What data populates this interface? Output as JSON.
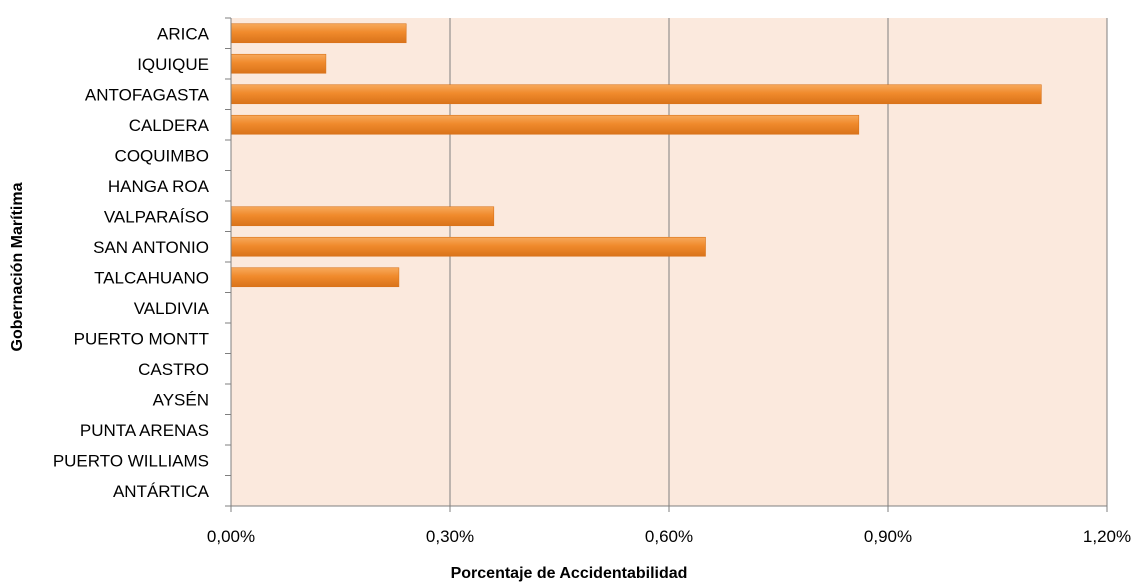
{
  "chart_data": {
    "type": "bar",
    "orientation": "horizontal",
    "title": "",
    "xlabel": "Porcentaje de Accidentabilidad",
    "ylabel": "Gobernación Marítima",
    "categories": [
      "ARICA",
      "IQUIQUE",
      "ANTOFAGASTA",
      "CALDERA",
      "COQUIMBO",
      "HANGA ROA",
      "VALPARAÍSO",
      "SAN ANTONIO",
      "TALCAHUANO",
      "VALDIVIA",
      "PUERTO MONTT",
      "CASTRO",
      "AYSÉN",
      "PUNTA ARENAS",
      "PUERTO WILLIAMS",
      "ANTÁRTICA"
    ],
    "values": [
      0.24,
      0.13,
      1.11,
      0.86,
      0,
      0,
      0.36,
      0.65,
      0.23,
      0,
      0,
      0,
      0,
      0,
      0,
      0
    ],
    "xlim": [
      0,
      1.2
    ],
    "ticks": [
      0,
      0.3,
      0.6,
      0.9,
      1.2
    ],
    "tick_labels": [
      "0,00%",
      "0,30%",
      "0,60%",
      "0,90%",
      "1,20%"
    ],
    "grid": true,
    "legend": "none",
    "colors": {
      "bar": "#f08a2c",
      "bar_light": "#f7a95c",
      "bar_dark": "#d9731a",
      "plot_background": "#fbe9dd",
      "gridline": "#7f7f7f",
      "axis": "#7f7f7f"
    }
  }
}
